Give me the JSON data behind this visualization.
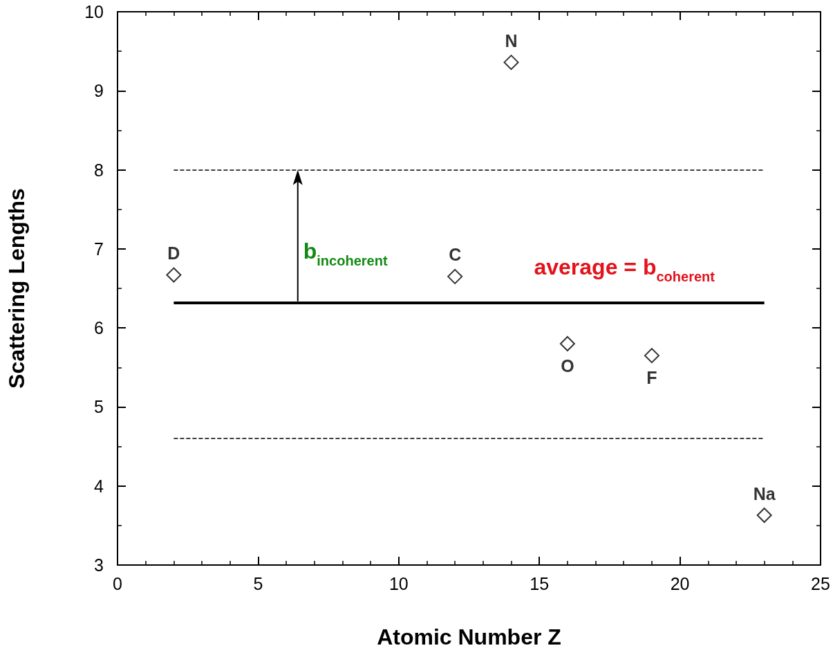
{
  "chart_data": {
    "type": "scatter",
    "xlabel": "Atomic Number Z",
    "ylabel": "Scattering Lengths",
    "x": [
      2,
      12,
      14,
      16,
      19,
      23
    ],
    "series": [
      {
        "color": "#000000",
        "values": [
          6.67,
          6.65,
          9.36,
          5.8,
          5.65,
          3.63
        ],
        "value_labels": [
          "D",
          "C",
          "N",
          "O",
          "F",
          "Na"
        ]
      }
    ],
    "marker": "diamond",
    "grid": false,
    "xlim": [
      0,
      25
    ],
    "xticks": [
      0,
      5,
      10,
      15,
      20,
      25
    ],
    "ylim": [
      3,
      10
    ],
    "yticks": [
      3,
      4,
      5,
      6,
      7,
      8,
      9,
      10
    ],
    "ref_lines": [
      {
        "axis": "y",
        "value": 6.32,
        "color": "#000000",
        "line_style": "solid"
      },
      {
        "axis": "y",
        "value": 8.0,
        "color": "#000000",
        "line_style": "dashed"
      },
      {
        "axis": "y",
        "value": 4.6,
        "color": "#000000",
        "line_style": "dashed"
      }
    ],
    "annotations": [
      "b$_{incoherent}$",
      "average = b$_{coherent}$"
    ]
  }
}
